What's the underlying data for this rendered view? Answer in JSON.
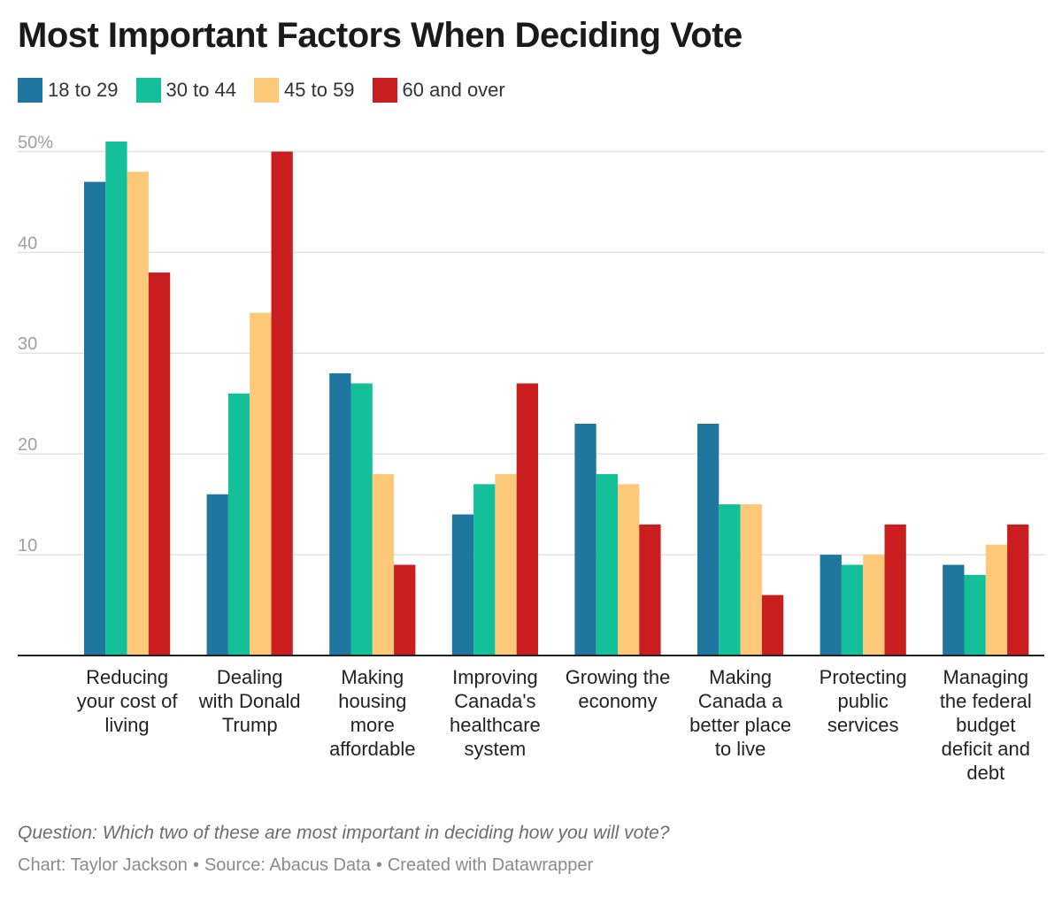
{
  "chart_data": {
    "type": "bar",
    "title": "Most Important Factors When Deciding Vote",
    "categories": [
      [
        "Reducing",
        "your cost of",
        "living"
      ],
      [
        "Dealing",
        "with Donald",
        "Trump"
      ],
      [
        "Making",
        "housing",
        "more",
        "affordable"
      ],
      [
        "Improving",
        "Canada's",
        "healthcare",
        "system"
      ],
      [
        "Growing the",
        "economy"
      ],
      [
        "Making",
        "Canada a",
        "better place",
        "to live"
      ],
      [
        "Protecting",
        "public",
        "services"
      ],
      [
        "Managing",
        "the federal",
        "budget",
        "deficit and",
        "debt"
      ]
    ],
    "series": [
      {
        "name": "18 to 29",
        "color": "#1f77a0",
        "values": [
          47,
          16,
          28,
          14,
          23,
          23,
          10,
          9
        ]
      },
      {
        "name": "30 to 44",
        "color": "#14c09a",
        "values": [
          51,
          26,
          27,
          17,
          18,
          15,
          9,
          8
        ]
      },
      {
        "name": "45 to 59",
        "color": "#fdc979",
        "values": [
          48,
          34,
          18,
          18,
          17,
          15,
          10,
          11
        ]
      },
      {
        "name": "60 and over",
        "color": "#c91d1f",
        "values": [
          38,
          50,
          9,
          27,
          13,
          6,
          13,
          13
        ]
      }
    ],
    "yticks": [
      {
        "value": 10,
        "label": "10"
      },
      {
        "value": 20,
        "label": "20"
      },
      {
        "value": 30,
        "label": "30"
      },
      {
        "value": 40,
        "label": "40"
      },
      {
        "value": 50,
        "label": "50%"
      }
    ],
    "ylim": [
      0,
      51
    ],
    "grid": true,
    "legend_position": "top-left"
  },
  "footer": {
    "question": "Question: Which two of these are most important in deciding how you will vote?",
    "chart_by": "Chart: Taylor Jackson",
    "source": "Source: Abacus Data",
    "created_with": "Created with Datawrapper",
    "separator": "•"
  }
}
